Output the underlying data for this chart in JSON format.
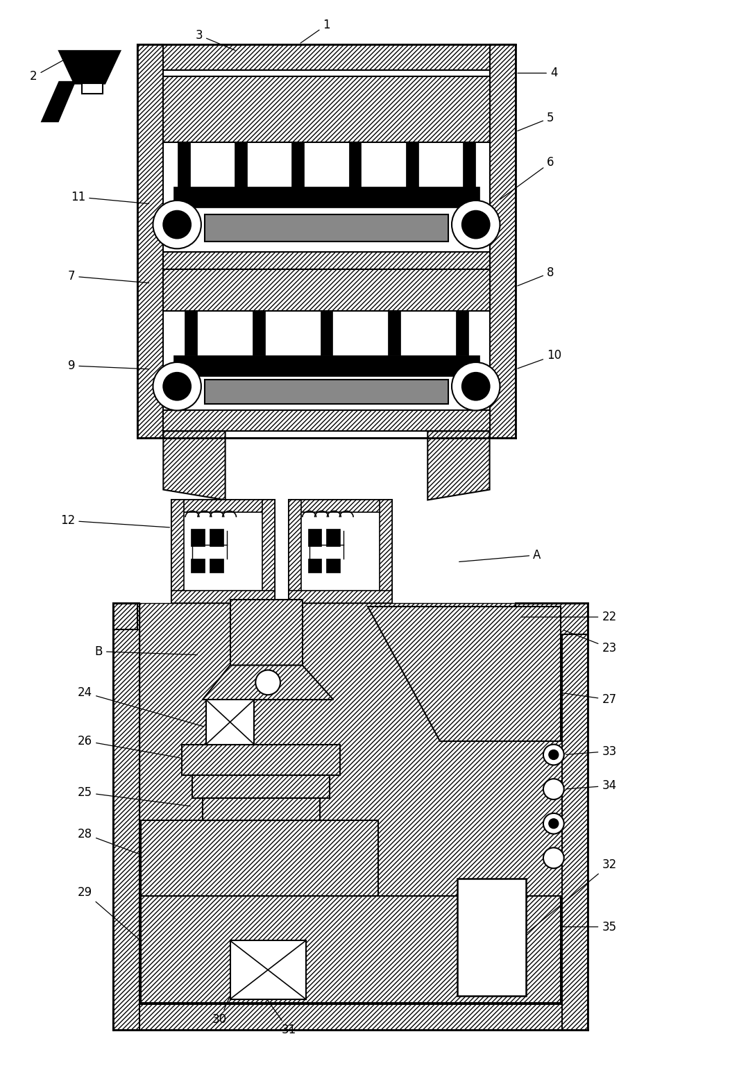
{
  "bg_color": "#ffffff",
  "line_color": "#000000",
  "fig_width": 10.52,
  "fig_height": 15.49
}
